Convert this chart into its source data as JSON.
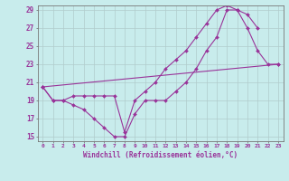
{
  "xlabel": "Windchill (Refroidissement éolien,°C)",
  "bg_color": "#c8ecec",
  "grid_color": "#b0cccc",
  "line_color": "#993399",
  "line1_x": [
    0,
    1,
    2,
    3,
    4,
    5,
    6,
    7,
    8,
    9,
    10,
    11,
    12,
    13,
    14,
    15,
    16,
    17,
    18,
    19,
    20,
    21,
    22,
    23
  ],
  "line1_y": [
    20.5,
    19.0,
    19.0,
    18.5,
    18.0,
    17.0,
    16.0,
    15.0,
    15.0,
    17.5,
    19.0,
    19.0,
    19.0,
    20.0,
    21.0,
    22.5,
    24.5,
    26.0,
    29.0,
    29.0,
    27.0,
    24.5,
    23.0,
    23.0
  ],
  "line2_x": [
    0,
    1,
    2,
    3,
    4,
    5,
    6,
    7,
    8,
    9,
    10,
    11,
    12,
    13,
    14,
    15,
    16,
    17,
    18,
    19,
    20,
    21
  ],
  "line2_y": [
    20.5,
    19.0,
    19.0,
    19.5,
    19.5,
    19.5,
    19.5,
    19.5,
    15.5,
    19.0,
    20.0,
    21.0,
    22.5,
    23.5,
    24.5,
    26.0,
    27.5,
    29.0,
    29.5,
    29.0,
    28.5,
    27.0
  ],
  "line3_x": [
    0,
    23
  ],
  "line3_y": [
    20.5,
    23.0
  ],
  "xmin": 0,
  "xmax": 23,
  "ymin": 15,
  "ymax": 29,
  "yticks": [
    15,
    17,
    19,
    21,
    23,
    25,
    27,
    29
  ],
  "xticks": [
    0,
    1,
    2,
    3,
    4,
    5,
    6,
    7,
    8,
    9,
    10,
    11,
    12,
    13,
    14,
    15,
    16,
    17,
    18,
    19,
    20,
    21,
    22,
    23
  ]
}
